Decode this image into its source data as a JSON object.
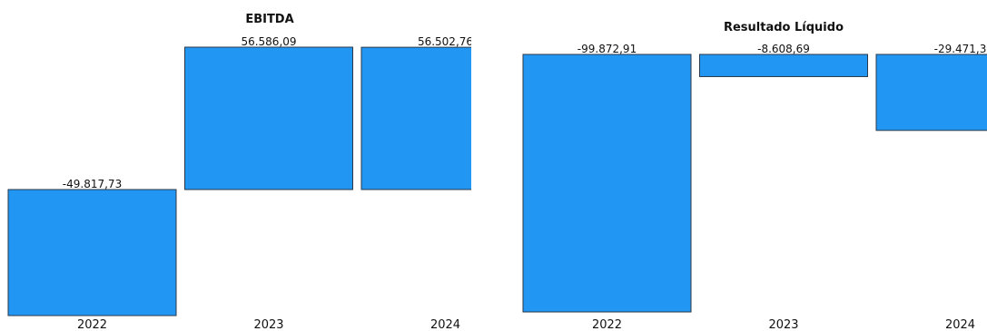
{
  "colors": {
    "bar": "#2196F3",
    "bar_border": "#2b3a4a"
  },
  "chart_data": [
    {
      "type": "bar",
      "title": "EBITDA",
      "categories": [
        "2022",
        "2023",
        "2024"
      ],
      "values": [
        -49817.73,
        56586.09,
        56502.76
      ],
      "value_labels": [
        "-49.817,73",
        "56.586,09",
        "56.502,76"
      ],
      "xlabel": "",
      "ylabel": "",
      "grid": false,
      "legend": "none"
    },
    {
      "type": "bar",
      "title": "Resultado Líquido",
      "categories": [
        "2022",
        "2023",
        "2024"
      ],
      "values": [
        -99872.91,
        -8608.69,
        -29471.3
      ],
      "value_labels": [
        "-99.872,91",
        "-8.608,69",
        "-29.471,3"
      ],
      "xlabel": "",
      "ylabel": "",
      "grid": false,
      "legend": "none"
    }
  ]
}
